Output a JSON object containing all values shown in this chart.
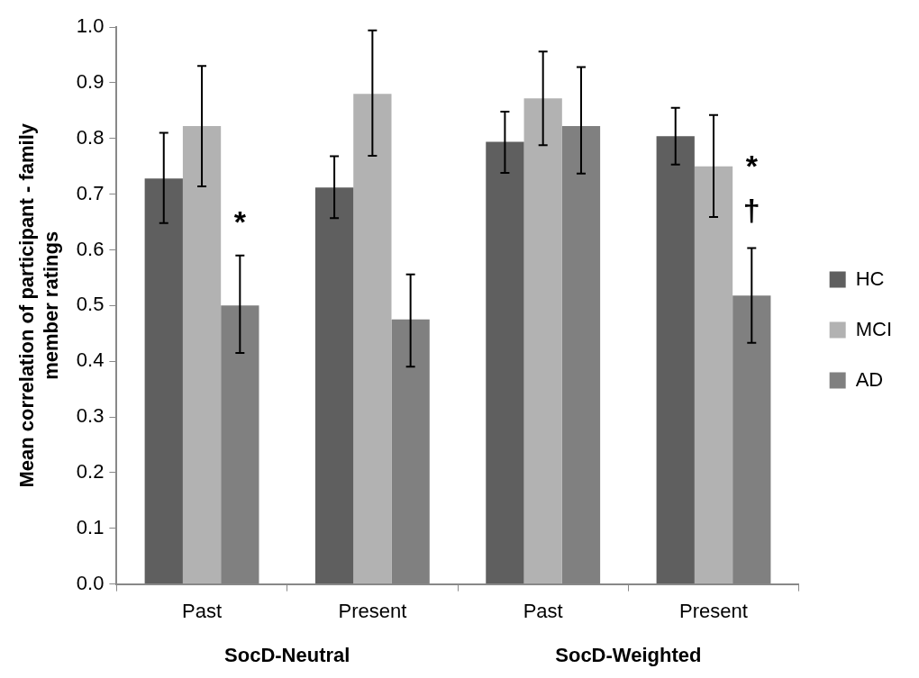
{
  "chart_data": {
    "type": "bar",
    "ylabel": "Mean correlation of participant - family member ratings",
    "categories": [
      "Past",
      "Present",
      "Past",
      "Present"
    ],
    "series": [
      {
        "name": "HC",
        "color": "#5f5f5f",
        "values": [
          0.728,
          0.712,
          0.794,
          0.804
        ],
        "errors": [
          [
            0.648,
            0.81
          ],
          [
            0.657,
            0.768
          ],
          [
            0.738,
            0.848
          ],
          [
            0.753,
            0.855
          ]
        ]
      },
      {
        "name": "MCI",
        "color": "#b2b2b2",
        "values": [
          0.822,
          0.88,
          0.872,
          0.75
        ],
        "errors": [
          [
            0.714,
            0.93
          ],
          [
            0.769,
            0.994
          ],
          [
            0.788,
            0.956
          ],
          [
            0.659,
            0.842
          ]
        ]
      },
      {
        "name": "AD",
        "color": "#808080",
        "values": [
          0.5,
          0.475,
          0.822,
          0.518
        ],
        "errors": [
          [
            0.415,
            0.59
          ],
          [
            0.39,
            0.556
          ],
          [
            0.737,
            0.928
          ],
          [
            0.433,
            0.603
          ]
        ]
      }
    ],
    "ylim": [
      0,
      1
    ],
    "yticks": [
      {
        "value": 0,
        "label": "0.0"
      },
      {
        "value": 0.1,
        "label": "0.1"
      },
      {
        "value": 0.2,
        "label": "0.2"
      },
      {
        "value": 0.3,
        "label": "0.3"
      },
      {
        "value": 0.4,
        "label": "0.4"
      },
      {
        "value": 0.5,
        "label": "0.5"
      },
      {
        "value": 0.6,
        "label": "0.6"
      },
      {
        "value": 0.7,
        "label": "0.7"
      },
      {
        "value": 0.8,
        "label": "0.8"
      },
      {
        "value": 0.9,
        "label": "0.9"
      },
      {
        "value": 1,
        "label": "1.0"
      }
    ],
    "grid": false,
    "legend": "right",
    "annotations": [
      "SocD-Neutral",
      "SocD-Weighted",
      "*",
      "*",
      "†"
    ]
  }
}
